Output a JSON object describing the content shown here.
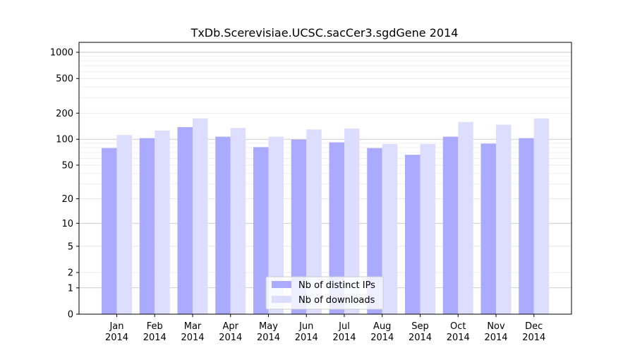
{
  "chart_data": {
    "type": "bar",
    "title": "TxDb.Scerevisiae.UCSC.sacCer3.sgdGene 2014",
    "xlabel": "",
    "ylabel": "",
    "y_scale": "log(1+y)",
    "ylim": [
      0,
      1300
    ],
    "yticks": [
      0,
      1,
      2,
      5,
      10,
      20,
      50,
      100,
      200,
      500,
      1000
    ],
    "grid": true,
    "legend_position": "bottom-center",
    "categories": [
      [
        "Jan",
        "2014"
      ],
      [
        "Feb",
        "2014"
      ],
      [
        "Mar",
        "2014"
      ],
      [
        "Apr",
        "2014"
      ],
      [
        "May",
        "2014"
      ],
      [
        "Jun",
        "2014"
      ],
      [
        "Jul",
        "2014"
      ],
      [
        "Aug",
        "2014"
      ],
      [
        "Sep",
        "2014"
      ],
      [
        "Oct",
        "2014"
      ],
      [
        "Nov",
        "2014"
      ],
      [
        "Dec",
        "2014"
      ]
    ],
    "series": [
      {
        "name": "Nb of distinct IPs",
        "color": "#aaaaff",
        "values": [
          79,
          103,
          138,
          107,
          81,
          99,
          92,
          79,
          66,
          107,
          89,
          103
        ]
      },
      {
        "name": "Nb of downloads",
        "color": "#ddddff",
        "values": [
          112,
          126,
          174,
          135,
          107,
          130,
          133,
          88,
          88,
          158,
          147,
          174
        ]
      }
    ]
  }
}
